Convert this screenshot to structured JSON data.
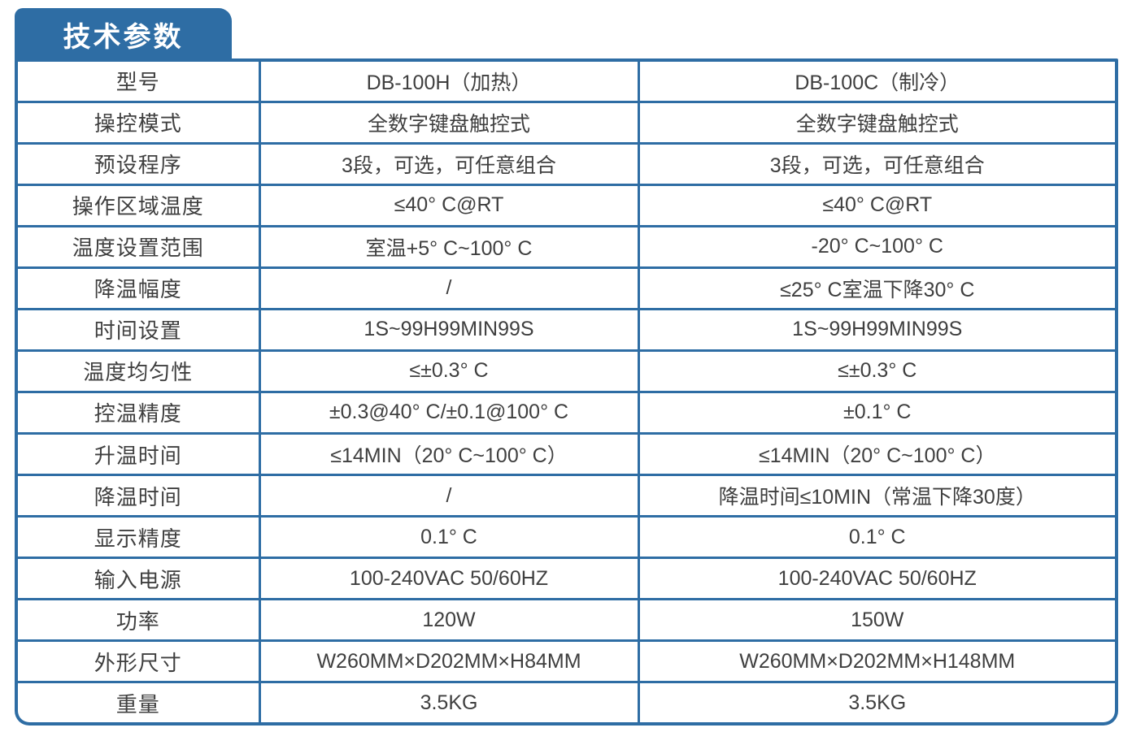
{
  "title": "技术参数",
  "colors": {
    "accent": "#2E6DA4",
    "text": "#3F3F3F",
    "background": "#FFFFFF"
  },
  "table": {
    "rows": [
      {
        "label": "型号",
        "h": "DB-100H（加热）",
        "c": "DB-100C（制冷）"
      },
      {
        "label": "操控模式",
        "h": "全数字键盘触控式",
        "c": "全数字键盘触控式"
      },
      {
        "label": "预设程序",
        "h": "3段，可选，可任意组合",
        "c": "3段，可选，可任意组合"
      },
      {
        "label": "操作区域温度",
        "h": "≤40° C@RT",
        "c": "≤40° C@RT"
      },
      {
        "label": "温度设置范围",
        "h": "室温+5° C~100° C",
        "c": "-20° C~100° C"
      },
      {
        "label": "降温幅度",
        "h": "/",
        "c": "≤25° C室温下降30° C"
      },
      {
        "label": "时间设置",
        "h": "1S~99H99MIN99S",
        "c": "1S~99H99MIN99S"
      },
      {
        "label": "温度均匀性",
        "h": "≤±0.3° C",
        "c": "≤±0.3° C"
      },
      {
        "label": "控温精度",
        "h": "±0.3@40° C/±0.1@100° C",
        "c": "±0.1° C"
      },
      {
        "label": "升温时间",
        "h": "≤14MIN（20° C~100° C）",
        "c": "≤14MIN（20° C~100° C）"
      },
      {
        "label": "降温时间",
        "h": "/",
        "c": "降温时间≤10MIN（常温下降30度）"
      },
      {
        "label": "显示精度",
        "h": "0.1° C",
        "c": "0.1° C"
      },
      {
        "label": "输入电源",
        "h": "100-240VAC 50/60HZ",
        "c": "100-240VAC 50/60HZ"
      },
      {
        "label": "功率",
        "h": "120W",
        "c": "150W"
      },
      {
        "label": "外形尺寸",
        "h": "W260MM×D202MM×H84MM",
        "c": "W260MM×D202MM×H148MM"
      },
      {
        "label": "重量",
        "h": "3.5KG",
        "c": "3.5KG"
      }
    ]
  }
}
